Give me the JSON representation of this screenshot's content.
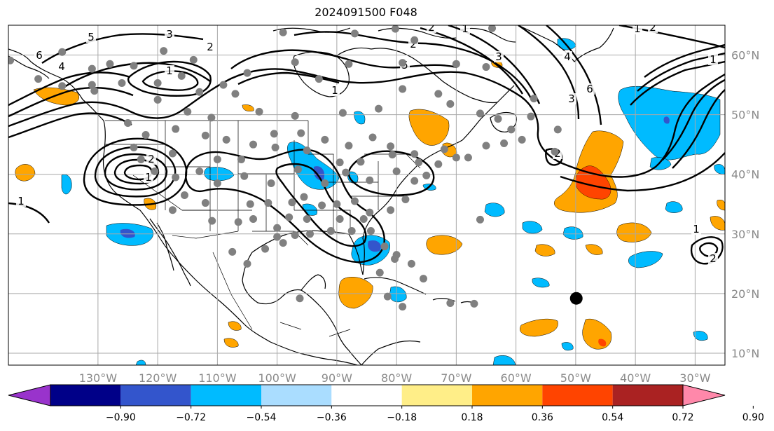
{
  "title": "2024091500 F048",
  "map": {
    "lon_min": -145,
    "lon_max": -25,
    "lat_min": 8,
    "lat_max": 65,
    "lon_ticks": [
      {
        "value": -130,
        "label": "130°W"
      },
      {
        "value": -120,
        "label": "120°W"
      },
      {
        "value": -110,
        "label": "110°W"
      },
      {
        "value": -100,
        "label": "100°W"
      },
      {
        "value": -90,
        "label": "90°W"
      },
      {
        "value": -80,
        "label": "80°W"
      },
      {
        "value": -70,
        "label": "70°W"
      },
      {
        "value": -60,
        "label": "60°W"
      },
      {
        "value": -50,
        "label": "50°W"
      },
      {
        "value": -40,
        "label": "40°W"
      },
      {
        "value": -30,
        "label": "30°W"
      }
    ],
    "lat_ticks": [
      {
        "value": 60,
        "label": "60°N"
      },
      {
        "value": 50,
        "label": "50°N"
      },
      {
        "value": 40,
        "label": "40°N"
      },
      {
        "value": 30,
        "label": "30°N"
      },
      {
        "value": 20,
        "label": "20°N"
      },
      {
        "value": 10,
        "label": "10°N"
      }
    ],
    "colors": {
      "c_m090": "#9933cc",
      "c_m072": "#000088",
      "c_m054": "#3355cc",
      "c_m036": "#00bbff",
      "c_m018": "#aaddff",
      "c_p018": "#ffee88",
      "c_p036": "#ffa500",
      "c_p054": "#ff4400",
      "c_p072": "#aa2222",
      "c_p090": "#ff88aa"
    },
    "contour_labels": [
      "5",
      "3",
      "2",
      "1",
      "6",
      "4",
      "2",
      "1",
      "5",
      "1",
      "3",
      "3",
      "6",
      "2",
      "4",
      "1",
      "1",
      "2",
      "2",
      "1",
      "1",
      "1",
      "2",
      "2"
    ],
    "stations": [
      [
        -144.7,
        59.1
      ],
      [
        -136,
        60.5
      ],
      [
        -131,
        57.7
      ],
      [
        -128,
        58.5
      ],
      [
        -124,
        58.2
      ],
      [
        -119,
        60.7
      ],
      [
        -114,
        59.2
      ],
      [
        -116,
        56.5
      ],
      [
        -120,
        55.3
      ],
      [
        -113,
        53.8
      ],
      [
        -109,
        55
      ],
      [
        -107,
        53.5
      ],
      [
        -105,
        57
      ],
      [
        -97,
        58.8
      ],
      [
        -93,
        56
      ],
      [
        -88,
        58.5
      ],
      [
        -79,
        58.7
      ],
      [
        -70,
        58.5
      ],
      [
        -65,
        58
      ],
      [
        -64,
        64.5
      ],
      [
        -80.2,
        64.4
      ],
      [
        -77,
        62.5
      ],
      [
        -87,
        63.6
      ],
      [
        -99,
        63.8
      ],
      [
        -136,
        54.8
      ],
      [
        -131,
        55
      ],
      [
        -126,
        55.3
      ],
      [
        -120,
        52.5
      ],
      [
        -115,
        50.5
      ],
      [
        -111,
        49.5
      ],
      [
        -103,
        50.5
      ],
      [
        -97,
        49.8
      ],
      [
        -89,
        50.3
      ],
      [
        -83,
        51
      ],
      [
        -79,
        54.3
      ],
      [
        -73,
        53.5
      ],
      [
        -71,
        51.8
      ],
      [
        -66,
        50.2
      ],
      [
        -63,
        49.3
      ],
      [
        -57,
        52.7
      ],
      [
        -53,
        47.5
      ],
      [
        -59,
        45.8
      ],
      [
        -65,
        44.8
      ],
      [
        -70,
        42.8
      ],
      [
        -73,
        41.7
      ],
      [
        -76.3,
        42
      ],
      [
        -80.7,
        43.3
      ],
      [
        -81,
        44.7
      ],
      [
        -84,
        46.2
      ],
      [
        -88,
        44.8
      ],
      [
        -92,
        45.8
      ],
      [
        -96,
        46.9
      ],
      [
        -100.5,
        46.8
      ],
      [
        -104,
        45
      ],
      [
        -108.5,
        45.8
      ],
      [
        -112,
        46.5
      ],
      [
        -117,
        47.6
      ],
      [
        -122,
        46.6
      ],
      [
        -124,
        44.5
      ],
      [
        -122.8,
        42.5
      ],
      [
        -120.5,
        40.5
      ],
      [
        -117,
        39.5
      ],
      [
        -113,
        40.5
      ],
      [
        -110,
        38.5
      ],
      [
        -105.5,
        39.7
      ],
      [
        -101,
        38.5
      ],
      [
        -96.5,
        40.8
      ],
      [
        -92,
        38.5
      ],
      [
        -88.5,
        40.3
      ],
      [
        -84.5,
        39
      ],
      [
        -80,
        40.5
      ],
      [
        -77,
        38.9
      ],
      [
        -75,
        39.8
      ],
      [
        -78.5,
        35.8
      ],
      [
        -81,
        34
      ],
      [
        -84.5,
        33.6
      ],
      [
        -87,
        35.5
      ],
      [
        -90,
        35
      ],
      [
        -92.5,
        34.8
      ],
      [
        -95.5,
        36.2
      ],
      [
        -97.5,
        35.3
      ],
      [
        -101.5,
        35.2
      ],
      [
        -104.5,
        35
      ],
      [
        -106.5,
        32
      ],
      [
        -110.9,
        32.2
      ],
      [
        -112,
        35.2
      ],
      [
        -117.5,
        34
      ],
      [
        -115.5,
        36.5
      ],
      [
        -98,
        32.8
      ],
      [
        -97,
        29.8
      ],
      [
        -94.5,
        30
      ],
      [
        -91,
        30.5
      ],
      [
        -87.5,
        30.5
      ],
      [
        -84.3,
        30.5
      ],
      [
        -82,
        27.9
      ],
      [
        -80.3,
        25.8
      ],
      [
        -82.8,
        23.5
      ],
      [
        -80,
        26.5
      ],
      [
        -77.5,
        25
      ],
      [
        -75.5,
        22.5
      ],
      [
        -81.5,
        19.5
      ],
      [
        -79,
        17.8
      ],
      [
        -71,
        18.4
      ],
      [
        -67,
        18.3
      ],
      [
        -66,
        32.4
      ],
      [
        -53.5,
        43.8
      ],
      [
        -57.5,
        49.7
      ],
      [
        -60.8,
        47.5
      ],
      [
        -62,
        45.2
      ],
      [
        -68,
        42.8
      ],
      [
        -72,
        44.2
      ],
      [
        -77,
        43.4
      ],
      [
        -86,
        42.1
      ],
      [
        -89.5,
        42
      ],
      [
        -95,
        44
      ],
      [
        -100.3,
        44.5
      ],
      [
        -110,
        42.5
      ],
      [
        -106,
        42.5
      ],
      [
        -117.5,
        43.5
      ],
      [
        -125,
        48.6
      ],
      [
        -130.6,
        54
      ],
      [
        -140,
        56
      ],
      [
        -104,
        32.5
      ],
      [
        -100,
        31
      ],
      [
        -95,
        32.5
      ],
      [
        -89.5,
        32.5
      ],
      [
        -85.5,
        32.5
      ],
      [
        -100,
        29.5
      ],
      [
        -102,
        27.5
      ],
      [
        -107.5,
        27
      ],
      [
        -105,
        25
      ],
      [
        -96.2,
        19.2
      ],
      [
        -99,
        28.5
      ]
    ],
    "tc_marker": [
      -49.9,
      19.2
    ]
  },
  "colorbar": {
    "labels": [
      "−0.90",
      "−0.72",
      "−0.54",
      "−0.36",
      "−0.18",
      "0.18",
      "0.36",
      "0.54",
      "0.72",
      "0.90"
    ],
    "colors": [
      "#9933cc",
      "#000088",
      "#3355cc",
      "#00bbff",
      "#aaddff",
      "#ffffff",
      "#ffee88",
      "#ffa500",
      "#ff4400",
      "#aa2222",
      "#ff88aa"
    ]
  }
}
